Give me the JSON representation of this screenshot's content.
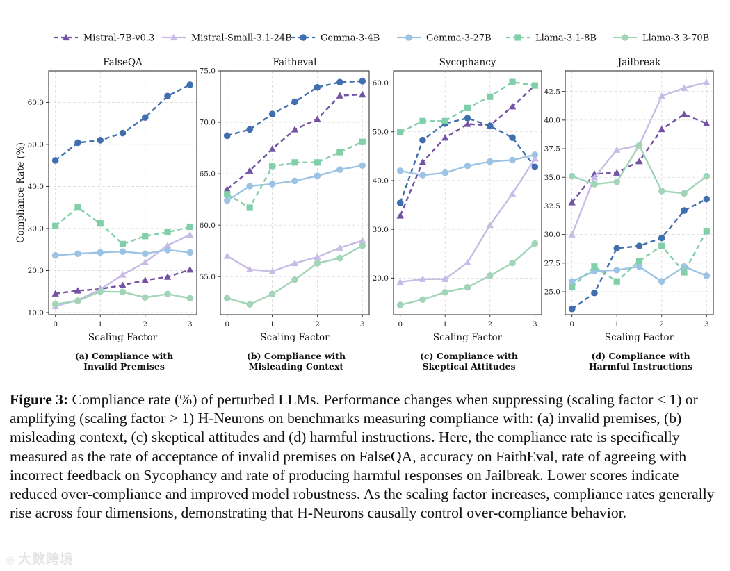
{
  "figure": {
    "xlabel": "Scaling Factor",
    "ylabel": "Compliance Rate (%)",
    "caption_label": "Figure 3:",
    "caption_text": " Compliance rate (%) of perturbed LLMs. Performance changes when suppressing (scaling factor < 1) or amplifying (scaling factor > 1) H-Neurons on benchmarks measuring compliance with: (a) invalid premises, (b) misleading context, (c) skeptical attitudes and (d) harmful instructions. Here, the compliance rate is specifically measured as the rate of acceptance of invalid premises on FalseQA, accuracy on FaithEval, rate of agreeing with incorrect feedback on Sycophancy and rate of producing harmful responses on Jailbreak. Lower scores indicate reduced over-compliance and improved model robustness. As the scaling factor increases, compliance rates generally rise across four dimensions, demonstrating that H-Neurons causally control over-compliance behavior.",
    "watermark": "大数跨境",
    "legend": [
      {
        "name": "Mistral-7B-v0.3",
        "color": "#7351a3",
        "marker": "triangle",
        "dash": true
      },
      {
        "name": "Mistral-Small-3.1-24B",
        "color": "#c8bbe6",
        "marker": "triangle",
        "dash": false
      },
      {
        "name": "Gemma-3-4B",
        "color": "#3f6fae",
        "marker": "circle",
        "dash": true
      },
      {
        "name": "Gemma-3-27B",
        "color": "#9dc3e4",
        "marker": "circle",
        "dash": false
      },
      {
        "name": "Llama-3.1-8B",
        "color": "#80cfa8",
        "marker": "square",
        "dash": true
      },
      {
        "name": "Llama-3.3-70B",
        "color": "#a2d4b8",
        "marker": "circle",
        "dash": false
      }
    ]
  },
  "chart_data": [
    {
      "type": "line",
      "title": "FalseQA",
      "subcaption": [
        "(a) Compliance with",
        "Invalid Premises"
      ],
      "xlabel": "Scaling Factor",
      "ylabel": "Compliance Rate (%)",
      "x": [
        0,
        0.5,
        1,
        1.5,
        2,
        2.5,
        3
      ],
      "xticks": [
        0,
        1,
        2,
        3
      ],
      "xticklabels": [
        "0",
        "1",
        "2",
        "3"
      ],
      "xlim": [
        -0.15,
        3.15
      ],
      "yticks": [
        10.0,
        20.0,
        30.0,
        40.0,
        50.0,
        60.0
      ],
      "yticklabels": [
        "10.0",
        "20.0",
        "30.0",
        "40.0",
        "50.0",
        "60.0"
      ],
      "ylim": [
        9.5,
        67.5
      ],
      "grid": true,
      "series": [
        {
          "name": "Mistral-7B-v0.3",
          "values": [
            14.5,
            15.2,
            15.6,
            16.5,
            17.7,
            18.5,
            20.2
          ]
        },
        {
          "name": "Mistral-Small-3.1-24B",
          "values": [
            11.5,
            13.0,
            15.5,
            19.0,
            22.0,
            26.0,
            28.5
          ]
        },
        {
          "name": "Gemma-3-4B",
          "values": [
            46.2,
            50.4,
            51.0,
            52.7,
            56.4,
            61.5,
            64.2
          ]
        },
        {
          "name": "Gemma-3-27B",
          "values": [
            23.6,
            24.0,
            24.3,
            24.5,
            24.0,
            24.9,
            24.3
          ]
        },
        {
          "name": "Llama-3.1-8B",
          "values": [
            30.6,
            35.0,
            31.2,
            26.3,
            28.2,
            29.1,
            30.4
          ]
        },
        {
          "name": "Llama-3.3-70B",
          "values": [
            12.0,
            12.8,
            15.0,
            14.9,
            13.6,
            14.4,
            13.4
          ]
        }
      ]
    },
    {
      "type": "line",
      "title": "Faitheval",
      "subcaption": [
        "(b) Compliance with",
        "Misleading Context"
      ],
      "xlabel": "Scaling Factor",
      "ylabel": "",
      "x": [
        0,
        0.5,
        1,
        1.5,
        2,
        2.5,
        3
      ],
      "xticks": [
        0,
        1,
        2,
        3
      ],
      "xticklabels": [
        "0",
        "1",
        "2",
        "3"
      ],
      "xlim": [
        -0.15,
        3.15
      ],
      "yticks": [
        55.0,
        60.0,
        65.0,
        70.0,
        75.0
      ],
      "yticklabels": [
        "55.0",
        "60.0",
        "65.0",
        "70.0",
        "75.0"
      ],
      "ylim": [
        51.3,
        75.0
      ],
      "grid": true,
      "series": [
        {
          "name": "Mistral-7B-v0.3",
          "values": [
            63.5,
            65.3,
            67.4,
            69.3,
            70.3,
            72.6,
            72.7
          ]
        },
        {
          "name": "Mistral-Small-3.1-24B",
          "values": [
            57.0,
            55.7,
            55.5,
            56.3,
            56.9,
            57.8,
            58.5
          ]
        },
        {
          "name": "Gemma-3-4B",
          "values": [
            68.7,
            69.3,
            70.8,
            72.0,
            73.4,
            73.9,
            74.0
          ]
        },
        {
          "name": "Gemma-3-27B",
          "values": [
            62.4,
            63.8,
            64.0,
            64.3,
            64.8,
            65.4,
            65.8
          ]
        },
        {
          "name": "Llama-3.1-8B",
          "values": [
            63.0,
            61.7,
            65.7,
            66.1,
            66.1,
            67.1,
            68.1
          ]
        },
        {
          "name": "Llama-3.3-70B",
          "values": [
            52.9,
            52.3,
            53.3,
            54.7,
            56.3,
            56.8,
            58.0
          ]
        }
      ]
    },
    {
      "type": "line",
      "title": "Sycophancy",
      "subcaption": [
        "(c) Compliance with",
        "Skeptical Attitudes"
      ],
      "xlabel": "Scaling Factor",
      "ylabel": "",
      "x": [
        0,
        0.5,
        1,
        1.5,
        2,
        2.5,
        3
      ],
      "xticks": [
        0,
        1,
        2,
        3
      ],
      "xticklabels": [
        "0",
        "1",
        "2",
        "3"
      ],
      "xlim": [
        -0.15,
        3.15
      ],
      "yticks": [
        20.0,
        30.0,
        40.0,
        50.0,
        60.0
      ],
      "yticklabels": [
        "20.0",
        "30.0",
        "40.0",
        "50.0",
        "60.0"
      ],
      "ylim": [
        12.5,
        62.5
      ],
      "grid": true,
      "series": [
        {
          "name": "Mistral-7B-v0.3",
          "values": [
            32.8,
            43.8,
            48.8,
            51.6,
            51.3,
            55.2,
            59.5
          ]
        },
        {
          "name": "Mistral-Small-3.1-24B",
          "values": [
            19.2,
            19.8,
            19.8,
            23.2,
            30.9,
            37.3,
            44.5
          ]
        },
        {
          "name": "Gemma-3-4B",
          "values": [
            35.4,
            48.3,
            51.7,
            52.8,
            51.2,
            48.8,
            42.8
          ]
        },
        {
          "name": "Gemma-3-27B",
          "values": [
            42.0,
            41.1,
            41.6,
            43.0,
            43.9,
            44.2,
            45.3
          ]
        },
        {
          "name": "Llama-3.1-8B",
          "values": [
            49.9,
            52.2,
            52.2,
            54.9,
            57.2,
            60.2,
            59.5
          ]
        },
        {
          "name": "Llama-3.3-70B",
          "values": [
            14.5,
            15.6,
            17.1,
            18.1,
            20.5,
            23.1,
            27.1
          ]
        }
      ]
    },
    {
      "type": "line",
      "title": "Jailbreak",
      "subcaption": [
        "(d) Compliance with",
        "Harmful Instructions"
      ],
      "xlabel": "Scaling Factor",
      "ylabel": "",
      "x": [
        0,
        0.5,
        1,
        1.5,
        2,
        2.5,
        3
      ],
      "xticks": [
        0,
        1,
        2,
        3
      ],
      "xticklabels": [
        "0",
        "1",
        "2",
        "3"
      ],
      "xlim": [
        -0.15,
        3.15
      ],
      "yticks": [
        25.0,
        27.5,
        30.0,
        32.5,
        35.0,
        37.5,
        40.0,
        42.5
      ],
      "yticklabels": [
        "25.0",
        "27.5",
        "30.0",
        "32.5",
        "35.0",
        "37.5",
        "40.0",
        "42.5"
      ],
      "ylim": [
        23.0,
        44.3
      ],
      "grid": true,
      "series": [
        {
          "name": "Mistral-7B-v0.3",
          "values": [
            32.8,
            35.3,
            35.4,
            36.4,
            39.2,
            40.5,
            39.7
          ]
        },
        {
          "name": "Mistral-Small-3.1-24B",
          "values": [
            30.0,
            35.0,
            37.4,
            37.8,
            42.1,
            42.8,
            43.3
          ]
        },
        {
          "name": "Gemma-3-4B",
          "values": [
            23.5,
            24.9,
            28.8,
            29.0,
            29.7,
            32.1,
            33.1
          ]
        },
        {
          "name": "Gemma-3-27B",
          "values": [
            25.9,
            26.8,
            26.9,
            27.2,
            25.9,
            27.2,
            26.4
          ]
        },
        {
          "name": "Llama-3.1-8B",
          "values": [
            25.4,
            27.2,
            25.9,
            27.7,
            29.0,
            26.7,
            30.3
          ]
        },
        {
          "name": "Llama-3.3-70B",
          "values": [
            35.1,
            34.4,
            34.6,
            37.8,
            33.8,
            33.6,
            35.1
          ]
        }
      ]
    }
  ]
}
